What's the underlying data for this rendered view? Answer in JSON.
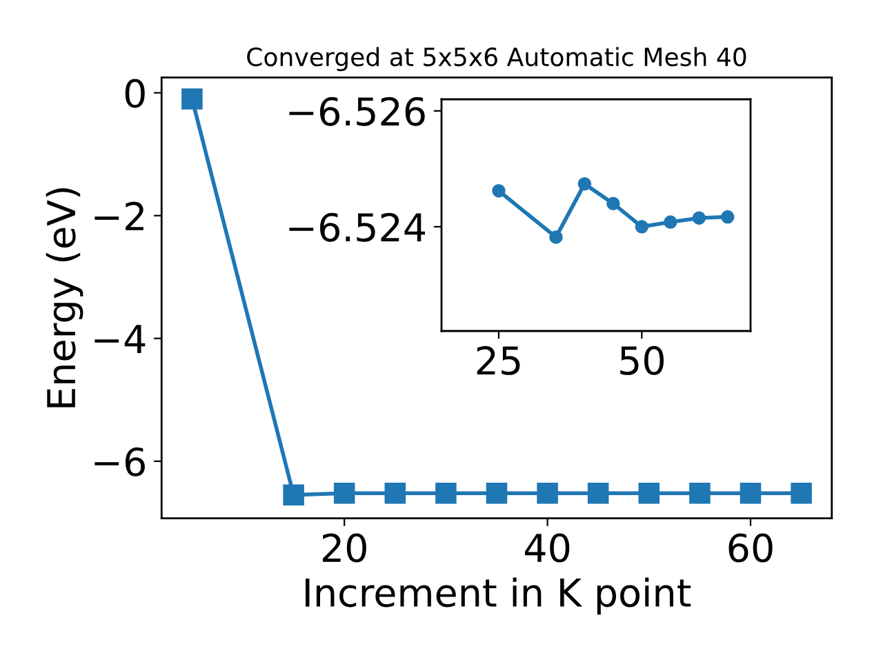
{
  "chart_data": [
    {
      "type": "line",
      "title": "Converged at 5x5x6 Automatic Mesh 40",
      "xlabel": "Increment in K point",
      "ylabel": "Energy (eV)",
      "marker": "square",
      "line_style": "solid",
      "grid": false,
      "legend": false,
      "x": [
        5,
        15,
        20,
        25,
        30,
        35,
        40,
        45,
        50,
        55,
        60,
        65
      ],
      "series": [
        {
          "color": "#1f77b4",
          "values": [
            -0.1,
            -6.55,
            -6.52,
            -6.52,
            -6.52,
            -6.52,
            -6.52,
            -6.52,
            -6.52,
            -6.52,
            -6.52,
            -6.52
          ]
        }
      ],
      "xlim": [
        2,
        68
      ],
      "ylim": [
        -6.93,
        0.25
      ],
      "xticks": [
        20,
        40,
        60
      ],
      "yticks": [
        0,
        -2,
        -4,
        -6
      ]
    },
    {
      "type": "line",
      "marker": "circle",
      "line_style": "solid",
      "grid": false,
      "legend": false,
      "x": [
        25,
        35,
        40,
        45,
        50,
        55,
        60,
        65
      ],
      "series": [
        {
          "color": "#1f77b4",
          "values": [
            -6.52462,
            -6.52382,
            -6.52474,
            -6.5244,
            -6.524,
            -6.52408,
            -6.52415,
            -6.52417
          ]
        }
      ],
      "xlim": [
        15,
        69
      ],
      "ylim": [
        -6.5222,
        -6.5262
      ],
      "xticks": [
        25,
        50
      ],
      "yticks": [
        -6.526,
        -6.524
      ]
    }
  ]
}
